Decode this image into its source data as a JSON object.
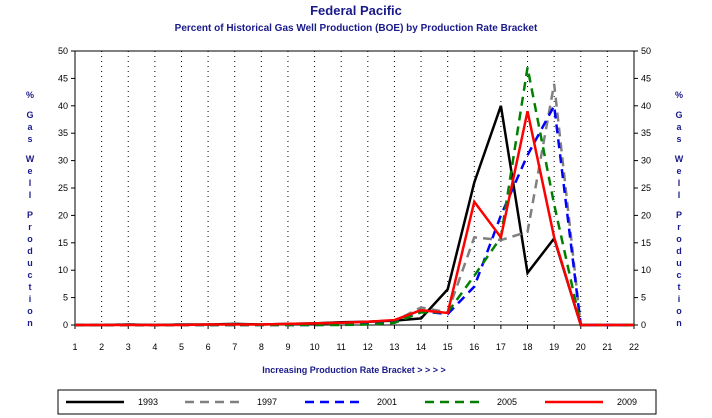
{
  "chart_data": {
    "type": "line",
    "title": "Federal Pacific",
    "subtitle": "Percent of Historical Gas Well Production (BOE) by Production Rate Bracket",
    "xlabel": "Increasing Production Rate Bracket > > > >",
    "ylabel": "% Gas Well Production",
    "ylim": [
      0,
      50
    ],
    "yticks": [
      0,
      5,
      10,
      15,
      20,
      25,
      30,
      35,
      40,
      45,
      50
    ],
    "x": [
      1,
      2,
      3,
      4,
      5,
      6,
      7,
      8,
      9,
      10,
      11,
      12,
      13,
      14,
      15,
      16,
      17,
      18,
      19,
      20,
      21,
      22
    ],
    "grid": true,
    "legend_position": "bottom",
    "series": [
      {
        "name": "1993",
        "color": "#000000",
        "dash": "solid",
        "values": [
          0,
          0,
          0.1,
          0,
          0.1,
          0.1,
          0.2,
          0.1,
          0.2,
          0.3,
          0.5,
          0.6,
          0.8,
          1.2,
          6.5,
          26,
          40,
          9.5,
          15.8,
          0,
          0,
          0
        ]
      },
      {
        "name": "1997",
        "color": "#808080",
        "dash": "dashed",
        "values": [
          0,
          0,
          0,
          0,
          0,
          0.1,
          0.1,
          0.1,
          0.1,
          0.2,
          0.2,
          0.4,
          0.7,
          3.2,
          2.3,
          16,
          15.5,
          17,
          44,
          0,
          0,
          0
        ]
      },
      {
        "name": "2001",
        "color": "#0000ff",
        "dash": "dashed",
        "values": [
          0,
          0,
          0,
          0,
          0,
          0,
          0,
          0,
          0,
          0,
          0.1,
          0.2,
          0.5,
          2.5,
          2.0,
          7,
          20,
          31,
          40,
          0,
          0,
          0
        ]
      },
      {
        "name": "2005",
        "color": "#008000",
        "dash": "dashed",
        "values": [
          0,
          0,
          0,
          0,
          0,
          0,
          0,
          0,
          0,
          0,
          0,
          0.1,
          0.4,
          2.3,
          2.3,
          9,
          16,
          47,
          22,
          0,
          0,
          0
        ]
      },
      {
        "name": "2009",
        "color": "#ff0000",
        "dash": "solid",
        "values": [
          0,
          0,
          0,
          0,
          0,
          0.1,
          0.1,
          0.1,
          0.2,
          0.3,
          0.4,
          0.6,
          0.9,
          2.7,
          2.2,
          22.5,
          16,
          39,
          16,
          0,
          0,
          0
        ]
      }
    ]
  }
}
